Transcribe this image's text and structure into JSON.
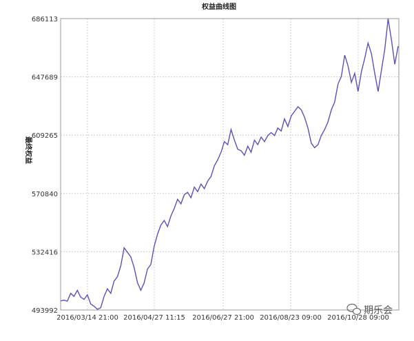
{
  "chart_data": {
    "type": "line",
    "title": "权益曲线图",
    "xlabel": "",
    "ylabel": "最终权益",
    "ylim": [
      493992,
      686113
    ],
    "yticks": [
      493992,
      532416,
      570840,
      609265,
      647689,
      686113
    ],
    "xticks": [
      "2016/03/14 21:00",
      "2016/04/27 11:15",
      "2016/06/27 21:00",
      "2016/08/23 09:00",
      "2016/10/28 09:00"
    ],
    "grid": true,
    "line_color": "#5a50b8",
    "series": [
      {
        "values": [
          500000,
          500500,
          499800,
          505000,
          503000,
          507000,
          502500,
          501000,
          504000,
          498000,
          496500,
          494500,
          495500,
          503000,
          508000,
          505000,
          513000,
          516000,
          523000,
          535000,
          532000,
          529000,
          522000,
          512000,
          507000,
          512000,
          521000,
          524000,
          536000,
          544000,
          550000,
          553000,
          549000,
          556000,
          561000,
          567000,
          564000,
          570000,
          571500,
          568000,
          575000,
          572000,
          577000,
          574000,
          579000,
          582000,
          589000,
          593000,
          598000,
          605000,
          603000,
          613000,
          606000,
          600000,
          599000,
          596000,
          602000,
          598000,
          606000,
          603000,
          608000,
          605000,
          609000,
          611000,
          609000,
          614000,
          612000,
          620000,
          615000,
          622000,
          625000,
          628000,
          626000,
          621000,
          614000,
          604000,
          601000,
          603000,
          609000,
          613000,
          618000,
          626000,
          631000,
          643000,
          648000,
          662000,
          655000,
          644000,
          650000,
          638000,
          651000,
          660000,
          670000,
          663000,
          650000,
          638000,
          652000,
          666000,
          686000,
          672000,
          656000,
          668000
        ]
      }
    ]
  },
  "watermark": {
    "text": "期乐会",
    "icon": "wechat-icon"
  }
}
